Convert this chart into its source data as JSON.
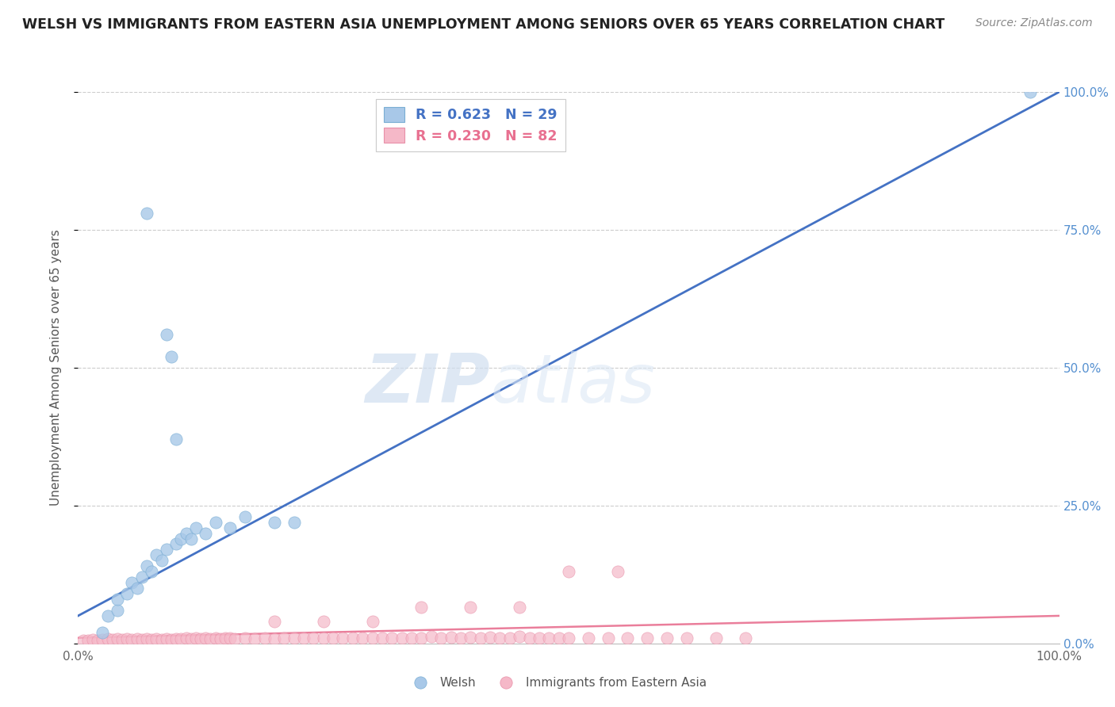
{
  "title": "WELSH VS IMMIGRANTS FROM EASTERN ASIA UNEMPLOYMENT AMONG SENIORS OVER 65 YEARS CORRELATION CHART",
  "source": "Source: ZipAtlas.com",
  "ylabel": "Unemployment Among Seniors over 65 years",
  "xlim": [
    0,
    1.0
  ],
  "ylim": [
    0,
    1.0
  ],
  "welsh_R": "0.623",
  "welsh_N": "29",
  "eastern_asia_R": "0.230",
  "eastern_asia_N": "82",
  "welsh_color": "#a8c8e8",
  "welsh_edge_color": "#7aaed4",
  "eastern_asia_color": "#f5b8c8",
  "eastern_asia_edge_color": "#e890a8",
  "welsh_line_color": "#4472c4",
  "eastern_asia_line_color": "#e87090",
  "background_color": "#ffffff",
  "watermark_zip": "ZIP",
  "watermark_atlas": "atlas",
  "welsh_x": [
    0.025,
    0.07,
    0.09,
    0.095,
    0.1,
    0.03,
    0.04,
    0.04,
    0.05,
    0.055,
    0.06,
    0.065,
    0.07,
    0.075,
    0.08,
    0.085,
    0.09,
    0.1,
    0.105,
    0.11,
    0.115,
    0.12,
    0.13,
    0.14,
    0.155,
    0.17,
    0.2,
    0.22,
    0.97
  ],
  "welsh_y": [
    0.02,
    0.78,
    0.56,
    0.52,
    0.37,
    0.05,
    0.06,
    0.08,
    0.09,
    0.11,
    0.1,
    0.12,
    0.14,
    0.13,
    0.16,
    0.15,
    0.17,
    0.18,
    0.19,
    0.2,
    0.19,
    0.21,
    0.2,
    0.22,
    0.21,
    0.23,
    0.22,
    0.22,
    1.0
  ],
  "welsh_line_x0": 0.0,
  "welsh_line_y0": 0.05,
  "welsh_line_x1": 1.0,
  "welsh_line_y1": 1.0,
  "ea_line_x0": 0.0,
  "ea_line_y0": 0.01,
  "ea_line_x1": 1.0,
  "ea_line_y1": 0.05,
  "ea_x": [
    0.005,
    0.01,
    0.015,
    0.02,
    0.025,
    0.03,
    0.035,
    0.04,
    0.045,
    0.05,
    0.055,
    0.06,
    0.065,
    0.07,
    0.075,
    0.08,
    0.085,
    0.09,
    0.095,
    0.1,
    0.105,
    0.11,
    0.115,
    0.12,
    0.125,
    0.13,
    0.135,
    0.14,
    0.145,
    0.15,
    0.155,
    0.16,
    0.17,
    0.18,
    0.19,
    0.2,
    0.21,
    0.22,
    0.23,
    0.24,
    0.25,
    0.26,
    0.27,
    0.28,
    0.29,
    0.3,
    0.31,
    0.32,
    0.33,
    0.34,
    0.35,
    0.36,
    0.37,
    0.38,
    0.39,
    0.4,
    0.41,
    0.42,
    0.43,
    0.44,
    0.45,
    0.46,
    0.47,
    0.48,
    0.49,
    0.5,
    0.52,
    0.54,
    0.56,
    0.58,
    0.6,
    0.62,
    0.65,
    0.68,
    0.4,
    0.35,
    0.45,
    0.25,
    0.3,
    0.2,
    0.5,
    0.55
  ],
  "ea_y": [
    0.005,
    0.005,
    0.007,
    0.006,
    0.007,
    0.008,
    0.007,
    0.008,
    0.007,
    0.008,
    0.007,
    0.008,
    0.007,
    0.008,
    0.007,
    0.008,
    0.007,
    0.008,
    0.007,
    0.008,
    0.008,
    0.009,
    0.008,
    0.009,
    0.008,
    0.009,
    0.008,
    0.009,
    0.008,
    0.009,
    0.009,
    0.008,
    0.009,
    0.008,
    0.009,
    0.008,
    0.009,
    0.009,
    0.009,
    0.009,
    0.01,
    0.009,
    0.01,
    0.01,
    0.01,
    0.009,
    0.01,
    0.01,
    0.01,
    0.01,
    0.01,
    0.012,
    0.01,
    0.011,
    0.01,
    0.011,
    0.01,
    0.011,
    0.01,
    0.01,
    0.012,
    0.01,
    0.01,
    0.01,
    0.01,
    0.01,
    0.01,
    0.01,
    0.01,
    0.01,
    0.01,
    0.01,
    0.01,
    0.01,
    0.065,
    0.065,
    0.065,
    0.04,
    0.04,
    0.04,
    0.13,
    0.13
  ]
}
